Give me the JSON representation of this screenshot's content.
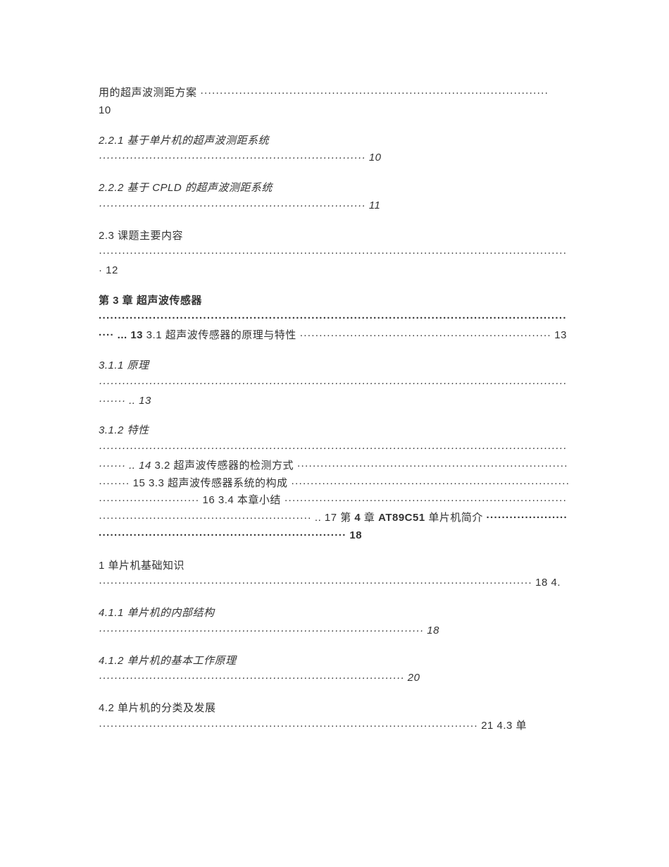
{
  "entries": [
    {
      "title": "用的超声波测距方案 ··························································································",
      "dots": "10",
      "bold": false,
      "italic": false
    },
    {
      "title": "2.2.1 基于单片机的超声波测距系统",
      "dots": "····································································· 10",
      "bold": false,
      "italic": true
    },
    {
      "title": "2.2.2 基于 CPLD 的超声波测距系统",
      "dots": "····································································· 11",
      "bold": false,
      "italic": true
    },
    {
      "title": "2.3 课题主要内容",
      "dots": "·························································································································· 12",
      "bold": false,
      "italic": false
    },
    {
      "title": "<span class=\"bold\">第 3 章 超声波传感器</span>",
      "dots": "<span class=\"bold\">····························································································································· ... 13</span> 3.1 超声波传感器的原理与特性 ································································· 13",
      "bold": false,
      "italic": false
    },
    {
      "title": "3.1.1 原理",
      "dots": "································································································································ .. 13",
      "bold": false,
      "italic": true
    },
    {
      "title": "<span class=\"italic\">3.1.2 特性</span>",
      "dots": "<span class=\"italic\">································································································································ .. 14</span> 3.2 超声波传感器的检测方式 ·············································································· 15 3.3 超声波传感器系统的构成 ·································································································· 16 3.4 本章小结 ································································································································ .. 17 第 <span class=\"bold\">4</span> 章 <span class=\"bold\">AT89C51</span> 单片机简介<span class=\"bold\"> ····················································································· 18</span>",
      "bold": false,
      "italic": false
    },
    {
      "title": "1 单片机基础知识",
      "dots": "················································································································ 18 4.",
      "bold": false,
      "italic": false
    },
    {
      "title": "4.1.1 单片机的内部结构",
      "dots": "···················································································· 18",
      "bold": false,
      "italic": true
    },
    {
      "title": "4.1.2 单片机的基本工作原理",
      "dots": "··············································································· 20",
      "bold": false,
      "italic": true
    },
    {
      "title": "4.2 单片机的分类及发展",
      "dots": "·································································································· 21 4.3 单",
      "bold": false,
      "italic": false
    }
  ]
}
